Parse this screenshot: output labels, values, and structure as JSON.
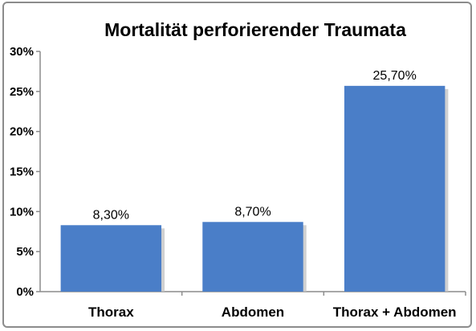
{
  "chart_data": {
    "type": "bar",
    "title": "Mortalität perforierender Traumata",
    "categories": [
      "Thorax",
      "Abdomen",
      "Thorax + Abdomen"
    ],
    "values": [
      8.3,
      8.7,
      25.7
    ],
    "data_labels": [
      "8,30%",
      "8,70%",
      "25,70%"
    ],
    "y_ticks": [
      0,
      5,
      10,
      15,
      20,
      25,
      30
    ],
    "y_tick_labels": [
      "0%",
      "5%",
      "10%",
      "15%",
      "20%",
      "25%",
      "30%"
    ],
    "ylim": [
      0,
      30
    ],
    "xlabel": "",
    "ylabel": "",
    "grid": false,
    "legend": "none",
    "colors": {
      "bar": "#4a7ec8",
      "bar_shadow": "#c4c4c4",
      "axis": "#8c8c8c",
      "frame": "#8c8c8c"
    }
  }
}
